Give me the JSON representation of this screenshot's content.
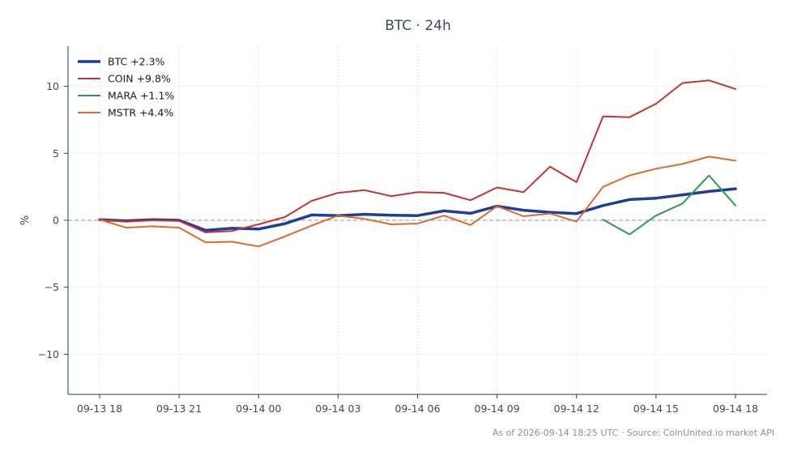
{
  "chart_data": {
    "type": "line",
    "title": "BTC · 24h",
    "xlabel": "",
    "ylabel": "%",
    "ylim": [
      -13,
      13
    ],
    "yticks": [
      10,
      5,
      0,
      -5,
      -10
    ],
    "ytick_labels": [
      "10",
      "5",
      "0",
      "−5",
      "−10"
    ],
    "xticks": [
      0,
      3,
      6,
      9,
      12,
      15,
      18,
      21,
      24
    ],
    "xtick_labels": [
      "09-13 18",
      "09-13 21",
      "09-14 00",
      "09-14 03",
      "09-14 06",
      "09-14 09",
      "09-14 12",
      "09-14 15",
      "09-14 18"
    ],
    "grid": true,
    "legend_position": "top-left",
    "zero_line": true,
    "footer": "As of 2026-09-14 18:25 UTC · Source: CoinUnited.io market API",
    "series": [
      {
        "name": "BTC +2.3%",
        "color": "#1f3d99",
        "width": 3.5,
        "x": [
          0,
          1,
          2,
          3,
          4,
          5,
          6,
          7,
          8,
          9,
          10,
          11,
          12,
          13,
          14,
          15,
          16,
          17,
          18,
          19,
          20,
          21,
          22,
          23,
          24
        ],
        "values": [
          0.05,
          -0.05,
          0.05,
          0.0,
          -0.75,
          -0.6,
          -0.65,
          -0.25,
          0.4,
          0.35,
          0.45,
          0.38,
          0.35,
          0.7,
          0.52,
          1.05,
          0.75,
          0.6,
          0.5,
          1.1,
          1.55,
          1.65,
          1.9,
          2.15,
          2.35
        ]
      },
      {
        "name": "COIN +9.8%",
        "color": "#c83232",
        "width": 2,
        "x": [
          0,
          1,
          2,
          3,
          4,
          5,
          6,
          7,
          8,
          9,
          10,
          11,
          12,
          13,
          14,
          15,
          16,
          17,
          18,
          19,
          20,
          21,
          22,
          23,
          24
        ],
        "values": [
          0.05,
          -0.1,
          0.0,
          -0.05,
          -0.9,
          -0.8,
          -0.3,
          0.25,
          1.45,
          2.05,
          2.25,
          1.8,
          2.1,
          2.05,
          1.5,
          2.45,
          2.1,
          4.0,
          2.85,
          7.75,
          7.7,
          8.7,
          10.25,
          10.45,
          9.8
        ]
      },
      {
        "name": "MARA +1.1%",
        "color": "#2a9c4c",
        "width": 2,
        "x": [
          19,
          20,
          21,
          22,
          23,
          24
        ],
        "values": [
          0.05,
          -1.05,
          0.35,
          1.25,
          3.35,
          1.1
        ]
      },
      {
        "name": "MSTR +4.4%",
        "color": "#de6a2a",
        "width": 2,
        "x": [
          0,
          1,
          2,
          3,
          4,
          5,
          6,
          7,
          8,
          9,
          10,
          11,
          12,
          13,
          14,
          15,
          16,
          17,
          18,
          19,
          20,
          21,
          22,
          23,
          24
        ],
        "values": [
          0.05,
          -0.55,
          -0.45,
          -0.55,
          -1.65,
          -1.6,
          -1.95,
          -1.2,
          -0.4,
          0.35,
          0.1,
          -0.3,
          -0.25,
          0.35,
          -0.35,
          1.05,
          0.3,
          0.5,
          -0.1,
          2.5,
          3.35,
          3.85,
          4.2,
          4.75,
          4.45
        ]
      }
    ]
  }
}
